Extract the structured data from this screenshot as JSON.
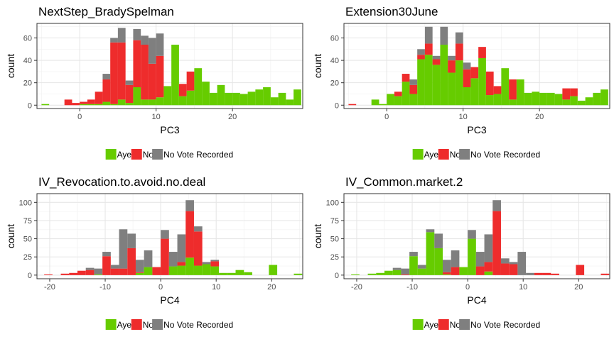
{
  "colors": {
    "Aye": "#66cc00",
    "No": "#ee2c2c",
    "No Vote Recorded": "#7f7f7f"
  },
  "legend": [
    "Aye",
    "No",
    "No Vote Recorded"
  ],
  "chart_data": [
    {
      "type": "bar",
      "stacked": true,
      "title": "NextStep_BradySpelman",
      "xlabel": "PC3",
      "ylabel": "count",
      "bin_width": 1,
      "xlim": [
        -5.6,
        29.2
      ],
      "ylim": [
        -3,
        73
      ],
      "xticks": [
        0,
        10,
        20
      ],
      "yticks": [
        0,
        20,
        40,
        60
      ],
      "bins": [
        {
          "x": -4.5,
          "Aye": 1,
          "No": 0,
          "No Vote Recorded": 0
        },
        {
          "x": -1.5,
          "Aye": 0,
          "No": 5,
          "No Vote Recorded": 0
        },
        {
          "x": -0.5,
          "Aye": 0,
          "No": 2,
          "No Vote Recorded": 0
        },
        {
          "x": 0.5,
          "Aye": 1,
          "No": 2,
          "No Vote Recorded": 0
        },
        {
          "x": 1.5,
          "Aye": 1,
          "No": 4,
          "No Vote Recorded": 0
        },
        {
          "x": 2.5,
          "Aye": 1,
          "No": 11,
          "No Vote Recorded": 0
        },
        {
          "x": 3.5,
          "Aye": 3,
          "No": 20,
          "No Vote Recorded": 5
        },
        {
          "x": 4.5,
          "Aye": 1,
          "No": 55,
          "No Vote Recorded": 4
        },
        {
          "x": 5.5,
          "Aye": 5,
          "No": 51,
          "No Vote Recorded": 13
        },
        {
          "x": 6.5,
          "Aye": 2,
          "No": 16,
          "No Vote Recorded": 4
        },
        {
          "x": 7.5,
          "Aye": 16,
          "No": 42,
          "No Vote Recorded": 10
        },
        {
          "x": 8.5,
          "Aye": 5,
          "No": 49,
          "No Vote Recorded": 8
        },
        {
          "x": 9.5,
          "Aye": 5,
          "No": 32,
          "No Vote Recorded": 23
        },
        {
          "x": 10.5,
          "Aye": 7,
          "No": 37,
          "No Vote Recorded": 20
        },
        {
          "x": 11.5,
          "Aye": 17,
          "No": 0,
          "No Vote Recorded": 0
        },
        {
          "x": 12.5,
          "Aye": 54,
          "No": 0,
          "No Vote Recorded": 0
        },
        {
          "x": 13.5,
          "Aye": 8,
          "No": 11,
          "No Vote Recorded": 0
        },
        {
          "x": 14.5,
          "Aye": 13,
          "No": 17,
          "No Vote Recorded": 0
        },
        {
          "x": 15.5,
          "Aye": 33,
          "No": 0,
          "No Vote Recorded": 0
        },
        {
          "x": 16.5,
          "Aye": 21,
          "No": 0,
          "No Vote Recorded": 0
        },
        {
          "x": 17.5,
          "Aye": 11,
          "No": 0,
          "No Vote Recorded": 0
        },
        {
          "x": 18.5,
          "Aye": 18,
          "No": 0,
          "No Vote Recorded": 0
        },
        {
          "x": 19.5,
          "Aye": 11,
          "No": 0,
          "No Vote Recorded": 0
        },
        {
          "x": 20.5,
          "Aye": 11,
          "No": 0,
          "No Vote Recorded": 0
        },
        {
          "x": 21.5,
          "Aye": 10,
          "No": 0,
          "No Vote Recorded": 0
        },
        {
          "x": 22.5,
          "Aye": 12,
          "No": 0,
          "No Vote Recorded": 0
        },
        {
          "x": 23.5,
          "Aye": 14,
          "No": 0,
          "No Vote Recorded": 0
        },
        {
          "x": 24.5,
          "Aye": 16,
          "No": 0,
          "No Vote Recorded": 0
        },
        {
          "x": 25.5,
          "Aye": 7,
          "No": 0,
          "No Vote Recorded": 0
        },
        {
          "x": 26.5,
          "Aye": 11,
          "No": 0,
          "No Vote Recorded": 0
        },
        {
          "x": 27.5,
          "Aye": 5,
          "No": 0,
          "No Vote Recorded": 0
        },
        {
          "x": 28.5,
          "Aye": 14,
          "No": 0,
          "No Vote Recorded": 0
        }
      ]
    },
    {
      "type": "bar",
      "stacked": true,
      "title": "Extension30June",
      "xlabel": "PC3",
      "ylabel": "count",
      "bin_width": 1,
      "xlim": [
        -5.6,
        29.2
      ],
      "ylim": [
        -3,
        73
      ],
      "xticks": [
        0,
        10,
        20
      ],
      "yticks": [
        0,
        20,
        40,
        60
      ],
      "bins": [
        {
          "x": -4.5,
          "Aye": 0,
          "No": 1,
          "No Vote Recorded": 0
        },
        {
          "x": -1.5,
          "Aye": 5,
          "No": 0,
          "No Vote Recorded": 0
        },
        {
          "x": -0.5,
          "Aye": 1,
          "No": 0,
          "No Vote Recorded": 0
        },
        {
          "x": 0.5,
          "Aye": 10,
          "No": 0,
          "No Vote Recorded": 0
        },
        {
          "x": 1.5,
          "Aye": 8,
          "No": 4,
          "No Vote Recorded": 0
        },
        {
          "x": 2.5,
          "Aye": 21,
          "No": 7,
          "No Vote Recorded": 0
        },
        {
          "x": 3.5,
          "Aye": 10,
          "No": 8,
          "No Vote Recorded": 5
        },
        {
          "x": 4.5,
          "Aye": 41,
          "No": 4,
          "No Vote Recorded": 5
        },
        {
          "x": 5.5,
          "Aye": 45,
          "No": 10,
          "No Vote Recorded": 15
        },
        {
          "x": 6.5,
          "Aye": 36,
          "No": 5,
          "No Vote Recorded": 3
        },
        {
          "x": 7.5,
          "Aye": 54,
          "No": 0,
          "No Vote Recorded": 16
        },
        {
          "x": 8.5,
          "Aye": 29,
          "No": 11,
          "No Vote Recorded": 4
        },
        {
          "x": 9.5,
          "Aye": 40,
          "No": 15,
          "No Vote Recorded": 10
        },
        {
          "x": 10.5,
          "Aye": 16,
          "No": 16,
          "No Vote Recorded": 6
        },
        {
          "x": 11.5,
          "Aye": 24,
          "No": 10,
          "No Vote Recorded": 0
        },
        {
          "x": 12.5,
          "Aye": 42,
          "No": 10,
          "No Vote Recorded": 0
        },
        {
          "x": 13.5,
          "Aye": 9,
          "No": 21,
          "No Vote Recorded": 0
        },
        {
          "x": 14.5,
          "Aye": 10,
          "No": 7,
          "No Vote Recorded": 0
        },
        {
          "x": 15.5,
          "Aye": 33,
          "No": 0,
          "No Vote Recorded": 0
        },
        {
          "x": 16.5,
          "Aye": 5,
          "No": 18,
          "No Vote Recorded": 0
        },
        {
          "x": 17.5,
          "Aye": 23,
          "No": 0,
          "No Vote Recorded": 0
        },
        {
          "x": 18.5,
          "Aye": 11,
          "No": 0,
          "No Vote Recorded": 0
        },
        {
          "x": 19.5,
          "Aye": 12,
          "No": 0,
          "No Vote Recorded": 0
        },
        {
          "x": 20.5,
          "Aye": 11,
          "No": 0,
          "No Vote Recorded": 0
        },
        {
          "x": 21.5,
          "Aye": 11,
          "No": 0,
          "No Vote Recorded": 0
        },
        {
          "x": 22.5,
          "Aye": 10,
          "No": 0,
          "No Vote Recorded": 0
        },
        {
          "x": 23.5,
          "Aye": 5,
          "No": 10,
          "No Vote Recorded": 0
        },
        {
          "x": 24.5,
          "Aye": 8,
          "No": 7,
          "No Vote Recorded": 0
        },
        {
          "x": 25.5,
          "Aye": 4,
          "No": 0,
          "No Vote Recorded": 0
        },
        {
          "x": 26.5,
          "Aye": 7,
          "No": 0,
          "No Vote Recorded": 0
        },
        {
          "x": 27.5,
          "Aye": 11,
          "No": 0,
          "No Vote Recorded": 0
        },
        {
          "x": 28.5,
          "Aye": 14,
          "No": 0,
          "No Vote Recorded": 0
        }
      ]
    },
    {
      "type": "bar",
      "stacked": true,
      "title": "IV_Revocation.to.avoid.no.deal",
      "xlabel": "PC4",
      "ylabel": "count",
      "bin_width": 1.5,
      "xlim": [
        -22.3,
        25.6
      ],
      "ylim": [
        -5,
        112
      ],
      "xticks": [
        -20,
        -10,
        0,
        10,
        20
      ],
      "yticks": [
        0,
        25,
        50,
        75,
        100
      ],
      "bins": [
        {
          "x": -20.25,
          "Aye": 0,
          "No": 1,
          "No Vote Recorded": 0
        },
        {
          "x": -17.25,
          "Aye": 0,
          "No": 2,
          "No Vote Recorded": 0
        },
        {
          "x": -15.75,
          "Aye": 0,
          "No": 3,
          "No Vote Recorded": 0
        },
        {
          "x": -14.25,
          "Aye": 0,
          "No": 6,
          "No Vote Recorded": 0
        },
        {
          "x": -12.75,
          "Aye": 0,
          "No": 7,
          "No Vote Recorded": 3
        },
        {
          "x": -11.25,
          "Aye": 1,
          "No": 0,
          "No Vote Recorded": 8
        },
        {
          "x": -9.75,
          "Aye": 0,
          "No": 26,
          "No Vote Recorded": 6
        },
        {
          "x": -8.25,
          "Aye": 0,
          "No": 9,
          "No Vote Recorded": 5
        },
        {
          "x": -6.75,
          "Aye": 0,
          "No": 9,
          "No Vote Recorded": 54
        },
        {
          "x": -5.25,
          "Aye": 0,
          "No": 37,
          "No Vote Recorded": 20
        },
        {
          "x": -3.75,
          "Aye": 3,
          "No": 1,
          "No Vote Recorded": 17
        },
        {
          "x": -2.25,
          "Aye": 11,
          "No": 0,
          "No Vote Recorded": 23
        },
        {
          "x": -0.75,
          "Aye": 0,
          "No": 11,
          "No Vote Recorded": 0
        },
        {
          "x": 0.75,
          "Aye": 0,
          "No": 50,
          "No Vote Recorded": 12
        },
        {
          "x": 2.25,
          "Aye": 12,
          "No": 0,
          "No Vote Recorded": 20
        },
        {
          "x": 3.75,
          "Aye": 13,
          "No": 5,
          "No Vote Recorded": 38
        },
        {
          "x": 5.25,
          "Aye": 24,
          "No": 64,
          "No Vote Recorded": 15
        },
        {
          "x": 6.75,
          "Aye": 13,
          "No": 47,
          "No Vote Recorded": 7
        },
        {
          "x": 8.25,
          "Aye": 15,
          "No": 0,
          "No Vote Recorded": 3
        },
        {
          "x": 9.75,
          "Aye": 12,
          "No": 7,
          "No Vote Recorded": 2
        },
        {
          "x": 11.25,
          "Aye": 3,
          "No": 0,
          "No Vote Recorded": 0
        },
        {
          "x": 12.75,
          "Aye": 3,
          "No": 0,
          "No Vote Recorded": 0
        },
        {
          "x": 14.25,
          "Aye": 7,
          "No": 0,
          "No Vote Recorded": 0
        },
        {
          "x": 15.75,
          "Aye": 4,
          "No": 0,
          "No Vote Recorded": 0
        },
        {
          "x": 20.25,
          "Aye": 14,
          "No": 0,
          "No Vote Recorded": 0
        },
        {
          "x": 24.75,
          "Aye": 2,
          "No": 0,
          "No Vote Recorded": 0
        }
      ]
    },
    {
      "type": "bar",
      "stacked": true,
      "title": "IV_Common.market.2",
      "xlabel": "PC4",
      "ylabel": "count",
      "bin_width": 1.5,
      "xlim": [
        -22.3,
        25.6
      ],
      "ylim": [
        -5,
        112
      ],
      "xticks": [
        -20,
        -10,
        0,
        10,
        20
      ],
      "yticks": [
        0,
        25,
        50,
        75,
        100
      ],
      "bins": [
        {
          "x": -20.25,
          "Aye": 1,
          "No": 0,
          "No Vote Recorded": 0
        },
        {
          "x": -17.25,
          "Aye": 2,
          "No": 0,
          "No Vote Recorded": 0
        },
        {
          "x": -15.75,
          "Aye": 3,
          "No": 0,
          "No Vote Recorded": 0
        },
        {
          "x": -14.25,
          "Aye": 6,
          "No": 0,
          "No Vote Recorded": 0
        },
        {
          "x": -12.75,
          "Aye": 7,
          "No": 0,
          "No Vote Recorded": 3
        },
        {
          "x": -11.25,
          "Aye": 0,
          "No": 1,
          "No Vote Recorded": 8
        },
        {
          "x": -9.75,
          "Aye": 26,
          "No": 0,
          "No Vote Recorded": 6
        },
        {
          "x": -8.25,
          "Aye": 9,
          "No": 0,
          "No Vote Recorded": 5
        },
        {
          "x": -6.75,
          "Aye": 59,
          "No": 0,
          "No Vote Recorded": 4
        },
        {
          "x": -5.25,
          "Aye": 37,
          "No": 0,
          "No Vote Recorded": 20
        },
        {
          "x": -3.75,
          "Aye": 1,
          "No": 3,
          "No Vote Recorded": 17
        },
        {
          "x": -2.25,
          "Aye": 0,
          "No": 11,
          "No Vote Recorded": 23
        },
        {
          "x": -0.75,
          "Aye": 11,
          "No": 0,
          "No Vote Recorded": 0
        },
        {
          "x": 0.75,
          "Aye": 50,
          "No": 0,
          "No Vote Recorded": 12
        },
        {
          "x": 2.25,
          "Aye": 0,
          "No": 12,
          "No Vote Recorded": 20
        },
        {
          "x": 3.75,
          "Aye": 5,
          "No": 13,
          "No Vote Recorded": 38
        },
        {
          "x": 5.25,
          "Aye": 0,
          "No": 88,
          "No Vote Recorded": 15
        },
        {
          "x": 6.75,
          "Aye": 0,
          "No": 16,
          "No Vote Recorded": 7
        },
        {
          "x": 8.25,
          "Aye": 0,
          "No": 15,
          "No Vote Recorded": 3
        },
        {
          "x": 9.75,
          "Aye": 0,
          "No": 0,
          "No Vote Recorded": 32
        },
        {
          "x": 11.25,
          "Aye": 0,
          "No": 0,
          "No Vote Recorded": 3
        },
        {
          "x": 12.75,
          "Aye": 0,
          "No": 3,
          "No Vote Recorded": 0
        },
        {
          "x": 14.25,
          "Aye": 0,
          "No": 3,
          "No Vote Recorded": 0
        },
        {
          "x": 15.75,
          "Aye": 0,
          "No": 2,
          "No Vote Recorded": 0
        },
        {
          "x": 20.25,
          "Aye": 0,
          "No": 14,
          "No Vote Recorded": 0
        },
        {
          "x": 24.75,
          "Aye": 0,
          "No": 2,
          "No Vote Recorded": 0
        }
      ]
    }
  ]
}
